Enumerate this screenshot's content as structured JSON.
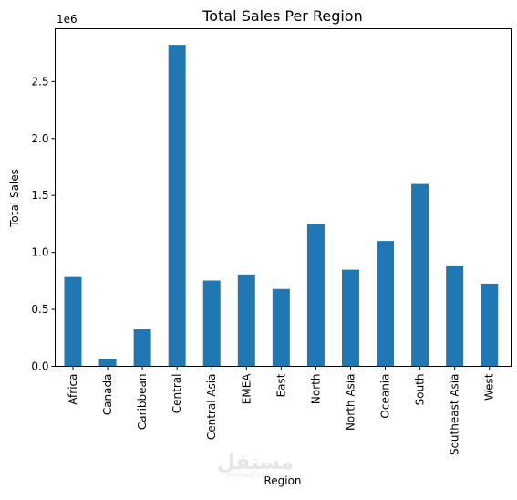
{
  "watermark": {
    "main": "مستقل",
    "sub": "mostaql.com"
  },
  "colors": {
    "bar": "#1f77b4",
    "axis": "#000000"
  },
  "chart_data": {
    "type": "bar",
    "title": "Total Sales Per Region",
    "xlabel": "Region",
    "ylabel": "Total Sales",
    "y_offset_label": "1e6",
    "categories": [
      "Africa",
      "Canada",
      "Caribbean",
      "Central",
      "Central Asia",
      "EMEA",
      "East",
      "North",
      "North Asia",
      "Oceania",
      "South",
      "Southeast Asia",
      "West"
    ],
    "values": [
      783773,
      66928,
      324281,
      2822399,
      752827,
      806184,
      678781,
      1248165,
      848310,
      1100185,
      1600907,
      884423,
      725458
    ],
    "yticks": [
      0.0,
      0.5,
      1.0,
      1.5,
      2.0,
      2.5
    ],
    "ytick_labels": [
      "0.0",
      "0.5",
      "1.0",
      "1.5",
      "2.0",
      "2.5"
    ],
    "ylim": [
      0,
      2963519
    ],
    "grid": false,
    "legend": "none"
  }
}
